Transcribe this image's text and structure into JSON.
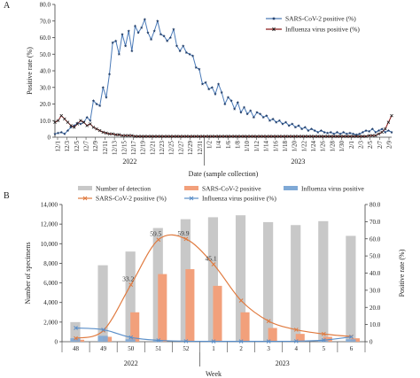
{
  "panel_a_label": "A",
  "panel_b_label": "B",
  "chart_data": [
    {
      "type": "line",
      "panel": "A",
      "xlabel": "Date (sample collection)",
      "ylabel": "Positive rate (%)",
      "ylim": [
        0,
        80
      ],
      "yticks": [
        0,
        10,
        20,
        30,
        40,
        50,
        60,
        70,
        80
      ],
      "y_tick_labels": [
        "0",
        "10.0",
        "20.0",
        "30.0",
        "40.0",
        "50.0",
        "60.0",
        "70.0",
        "80.0"
      ],
      "legend_position": "top-right",
      "x_tick_labels": [
        "12/1",
        "12/3",
        "12/5",
        "12/7",
        "12/9",
        "12/11",
        "12/13",
        "12/15",
        "12/17",
        "12/19",
        "12/21",
        "12/23",
        "12/25",
        "12/27",
        "12/29",
        "12/31",
        "1/2",
        "1/4",
        "1/6",
        "1/8",
        "1/10",
        "1/12",
        "1/14",
        "1/16",
        "1/18",
        "1/20",
        "1/22",
        "1/24",
        "1/26",
        "1/28",
        "1/30",
        "2/1",
        "2/3",
        "2/5",
        "2/7",
        "2/9"
      ],
      "year_labels": [
        "2022",
        "2023"
      ],
      "series": [
        {
          "name": "SARS-CoV-2 positive (%)",
          "color": "#4a7ab8",
          "marker": "star",
          "values": [
            2.0,
            2.5,
            3.0,
            2.0,
            4.0,
            6.0,
            7.0,
            8.5,
            8.0,
            9.0,
            12.0,
            10.0,
            22.0,
            20.0,
            19.0,
            30.0,
            24.0,
            38.0,
            57.0,
            58.0,
            50.0,
            62.0,
            55.0,
            64.0,
            52.0,
            67.0,
            63.0,
            66.0,
            71.0,
            63.0,
            59.0,
            64.0,
            70.0,
            62.0,
            61.0,
            58.0,
            60.0,
            65.0,
            55.0,
            52.0,
            55.0,
            51.0,
            50.0,
            49.0,
            42.0,
            41.0,
            32.0,
            33.0,
            29.0,
            30.0,
            26.0,
            32.0,
            27.0,
            20.0,
            24.0,
            22.0,
            17.0,
            21.0,
            15.0,
            18.0,
            14.0,
            16.0,
            12.0,
            15.0,
            14.0,
            12.0,
            13.0,
            10.0,
            11.0,
            9.0,
            10.0,
            8.0,
            9.0,
            7.0,
            8.0,
            6.0,
            7.0,
            5.0,
            6.0,
            4.0,
            5.0,
            4.0,
            3.0,
            4.0,
            3.0,
            2.5,
            3.0,
            2.0,
            3.0,
            2.0,
            3.0,
            2.0,
            2.5,
            2.0,
            1.5,
            2.0,
            3.0,
            4.0,
            3.5,
            5.0,
            3.0,
            4.0,
            5.0,
            3.0,
            4.0,
            3.0
          ]
        },
        {
          "name": "Influenza virus positive (%)",
          "color": "#8b1a1a",
          "marker": "x",
          "values": [
            9.0,
            10.0,
            13.0,
            11.0,
            9.0,
            7.0,
            6.0,
            8.0,
            10.0,
            9.0,
            7.0,
            8.0,
            6.0,
            5.0,
            4.0,
            3.0,
            2.5,
            2.0,
            2.0,
            1.5,
            1.5,
            1.0,
            1.0,
            1.0,
            1.0,
            0.5,
            0.5,
            0.5,
            0.5,
            0.5,
            0.5,
            0.5,
            0.5,
            0.5,
            0.5,
            0.5,
            0.5,
            0.5,
            0.5,
            0.5,
            0.5,
            0.5,
            0.5,
            0.5,
            0.5,
            0.5,
            0.5,
            0.5,
            0.5,
            0.5,
            0.5,
            0.5,
            0.5,
            0.5,
            0.5,
            0.5,
            0.5,
            0.5,
            0.5,
            0.5,
            0.5,
            0.5,
            0.5,
            0.5,
            0.5,
            0.5,
            0.5,
            0.5,
            0.5,
            0.5,
            0.5,
            0.5,
            0.5,
            0.5,
            0.5,
            0.5,
            0.5,
            0.5,
            0.5,
            0.5,
            0.5,
            0.5,
            0.5,
            0.5,
            0.5,
            0.5,
            0.5,
            0.5,
            0.5,
            0.5,
            0.5,
            0.5,
            0.5,
            0.5,
            0.5,
            0.5,
            0.5,
            0.5,
            1.0,
            1.0,
            1.0,
            2.0,
            3.0,
            5.0,
            9.0,
            13.0
          ]
        }
      ]
    },
    {
      "type": "bar",
      "panel": "B",
      "xlabel": "Week",
      "ylabel": "Number of specimens",
      "y2label": "Positive rate (%)",
      "categories": [
        "48",
        "49",
        "50",
        "51",
        "52",
        "1",
        "2",
        "3",
        "4",
        "5",
        "6"
      ],
      "year_labels": [
        "2022",
        "2023"
      ],
      "ylim": [
        0,
        14000
      ],
      "yticks": [
        0,
        2000,
        4000,
        6000,
        8000,
        10000,
        12000,
        14000
      ],
      "y_tick_labels": [
        "0",
        "2,000",
        "4,000",
        "6,000",
        "8,000",
        "10,000",
        "12,000",
        "14,000"
      ],
      "y2lim": [
        0,
        80
      ],
      "y2ticks": [
        0,
        10,
        20,
        30,
        40,
        50,
        60,
        70,
        80
      ],
      "y2_tick_labels": [
        "0",
        "10.0",
        "20.0",
        "30.0",
        "40.0",
        "50.0",
        "60.0",
        "70.0",
        "80.0"
      ],
      "legend_position": "top",
      "series": [
        {
          "name": "Number of detection",
          "kind": "bar",
          "axis": "left",
          "color": "#c8c8c8",
          "values": [
            2000,
            7800,
            9200,
            11600,
            12500,
            12700,
            12900,
            12200,
            11900,
            12300,
            10800
          ]
        },
        {
          "name": "SARS-CoV-2 positive",
          "kind": "bar",
          "axis": "left",
          "color": "#f2a07b",
          "values": [
            200,
            500,
            3000,
            6900,
            7400,
            5700,
            3000,
            1400,
            800,
            500,
            350
          ]
        },
        {
          "name": "Influenza virus positive",
          "kind": "bar",
          "axis": "left",
          "color": "#7fa9d6",
          "values": [
            350,
            600,
            250,
            100,
            50,
            30,
            30,
            30,
            40,
            100,
            250
          ]
        },
        {
          "name": "SARS-CoV-2 positive (%)",
          "kind": "line",
          "axis": "right",
          "color": "#e07a3f",
          "values": [
            2.0,
            6.5,
            33.2,
            59.5,
            59.9,
            45.1,
            24.0,
            12.0,
            7.0,
            4.5,
            3.0
          ]
        },
        {
          "name": "Influenza virus positive (%)",
          "kind": "line",
          "axis": "right",
          "color": "#5b8fc9",
          "values": [
            8.0,
            7.0,
            2.5,
            0.8,
            0.3,
            0.2,
            0.2,
            0.2,
            0.3,
            0.9,
            2.8
          ]
        }
      ],
      "data_labels": [
        {
          "category": "50",
          "text": "33.2"
        },
        {
          "category": "51",
          "text": "59.5"
        },
        {
          "category": "52",
          "text": "59.9"
        },
        {
          "category": "1",
          "text": "45.1"
        }
      ]
    }
  ]
}
